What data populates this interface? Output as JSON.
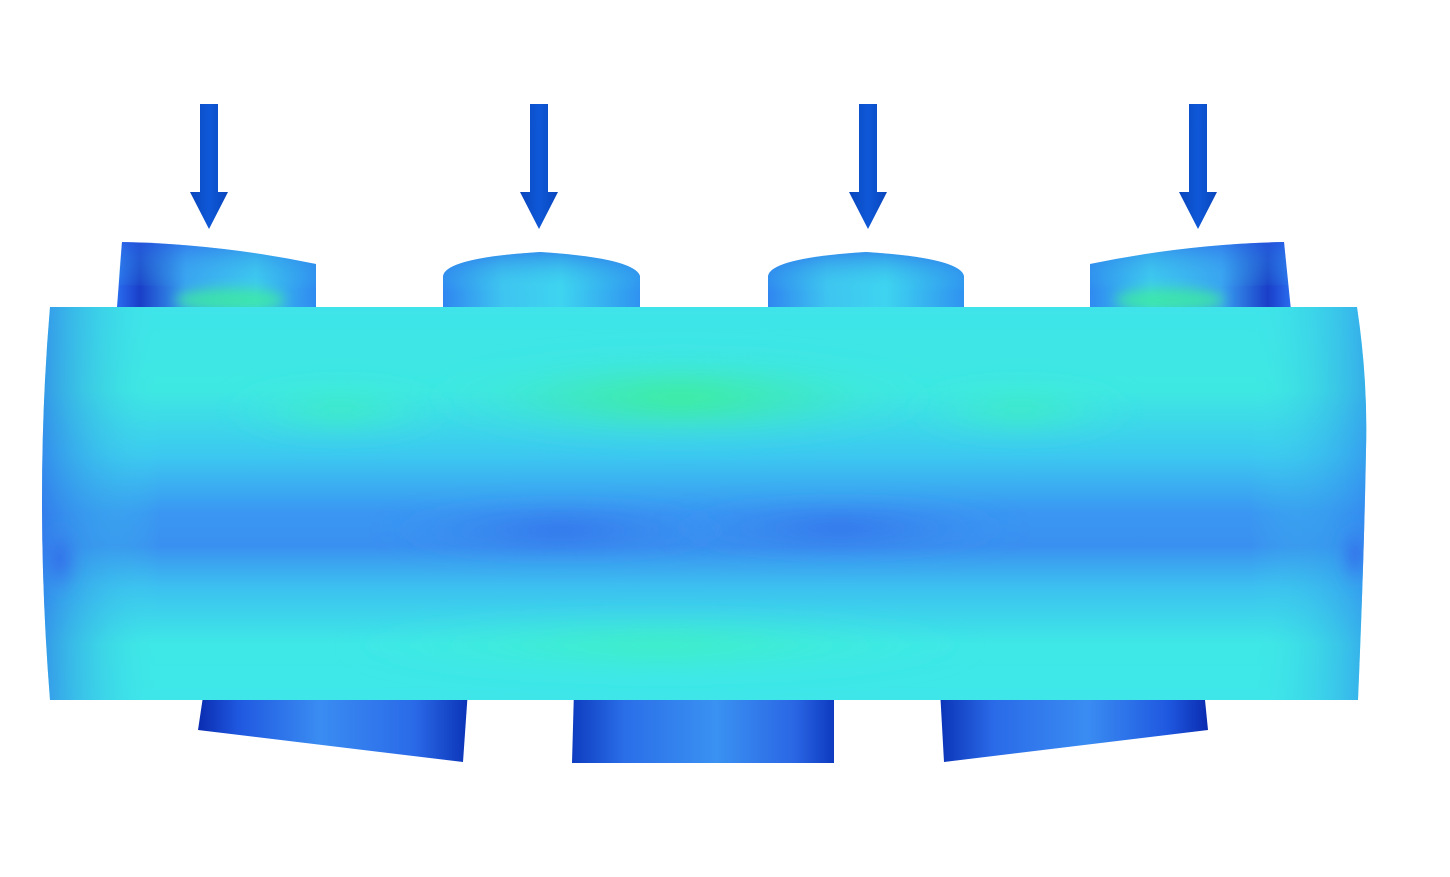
{
  "diagram": {
    "type": "fea-stress-contour",
    "view": "front",
    "load_arrows": [
      {
        "name": "load-arrow-1",
        "direction": "down",
        "icon": "arrow-down-icon"
      },
      {
        "name": "load-arrow-2",
        "direction": "down",
        "icon": "arrow-down-icon"
      },
      {
        "name": "load-arrow-3",
        "direction": "down",
        "icon": "arrow-down-icon"
      },
      {
        "name": "load-arrow-4",
        "direction": "down",
        "icon": "arrow-down-icon"
      }
    ],
    "top_supports_count": 4,
    "bottom_supports_count": 3,
    "colors": {
      "background": "#ffffff",
      "arrow": "#0b4fc8",
      "arrow_dark": "#0840a8",
      "contour_dark_blue": "#0a2fb4",
      "contour_blue": "#2f73f0",
      "contour_light_blue": "#3aa8f2",
      "contour_cyan": "#3ee8e6",
      "contour_green": "#35f08a"
    }
  }
}
